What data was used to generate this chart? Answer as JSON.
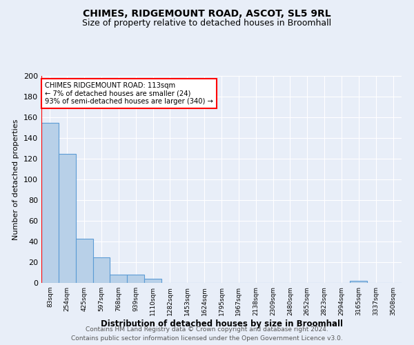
{
  "title": "CHIMES, RIDGEMOUNT ROAD, ASCOT, SL5 9RL",
  "subtitle": "Size of property relative to detached houses in Broomhall",
  "xlabel": "Distribution of detached houses by size in Broomhall",
  "ylabel": "Number of detached properties",
  "bar_values": [
    155,
    125,
    43,
    25,
    8,
    8,
    4,
    0,
    0,
    0,
    0,
    0,
    0,
    0,
    0,
    0,
    0,
    0,
    2,
    0,
    0
  ],
  "categories": [
    "83sqm",
    "254sqm",
    "425sqm",
    "597sqm",
    "768sqm",
    "939sqm",
    "1110sqm",
    "1282sqm",
    "1453sqm",
    "1624sqm",
    "1795sqm",
    "1967sqm",
    "2138sqm",
    "2309sqm",
    "2480sqm",
    "2652sqm",
    "2823sqm",
    "2994sqm",
    "3165sqm",
    "3337sqm",
    "3508sqm"
  ],
  "bar_color": "#b8d0e8",
  "bar_edge_color": "#5b9bd5",
  "ylim": [
    0,
    200
  ],
  "yticks": [
    0,
    20,
    40,
    60,
    80,
    100,
    120,
    140,
    160,
    180,
    200
  ],
  "annotation_title": "CHIMES RIDGEMOUNT ROAD: 113sqm",
  "annotation_line1": "← 7% of detached houses are smaller (24)",
  "annotation_line2": "93% of semi-detached houses are larger (340) →",
  "footer1": "Contains HM Land Registry data © Crown copyright and database right 2024.",
  "footer2": "Contains public sector information licensed under the Open Government Licence v3.0.",
  "bg_color": "#e8eef8",
  "plot_bg_color": "#e8eef8",
  "title_fontsize": 10,
  "subtitle_fontsize": 9
}
